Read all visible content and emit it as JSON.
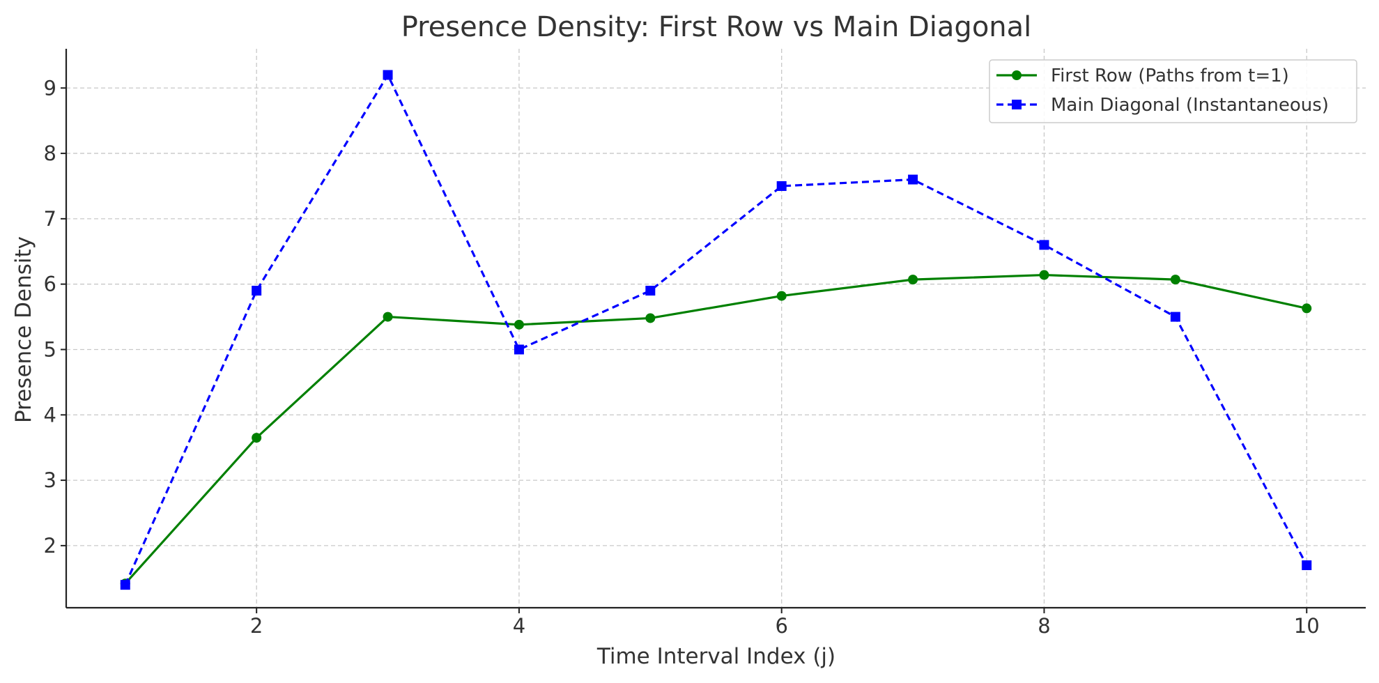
{
  "chart_data": {
    "type": "line",
    "title": "Presence Density: First Row vs Main Diagonal",
    "xlabel": "Time Interval Index (j)",
    "ylabel": "Presence Density",
    "x": [
      1,
      2,
      3,
      4,
      5,
      6,
      7,
      8,
      9,
      10
    ],
    "xlim": [
      0.55,
      10.45
    ],
    "ylim": [
      1.05,
      9.6
    ],
    "xticks": [
      2,
      4,
      6,
      8,
      10
    ],
    "yticks": [
      2,
      3,
      4,
      5,
      6,
      7,
      8,
      9
    ],
    "grid": true,
    "legend_position": "top-right",
    "series": [
      {
        "name": "First Row (Paths from t=1)",
        "color": "#008000",
        "line_style": "solid",
        "marker": "circle",
        "values": [
          1.42,
          3.65,
          5.5,
          5.38,
          5.48,
          5.82,
          6.07,
          6.14,
          6.07,
          5.63
        ]
      },
      {
        "name": "Main Diagonal (Instantaneous)",
        "color": "#0000ff",
        "line_style": "dashed",
        "marker": "square",
        "values": [
          1.4,
          5.9,
          9.2,
          5.0,
          5.9,
          7.5,
          7.6,
          6.6,
          5.5,
          1.7
        ]
      }
    ]
  }
}
